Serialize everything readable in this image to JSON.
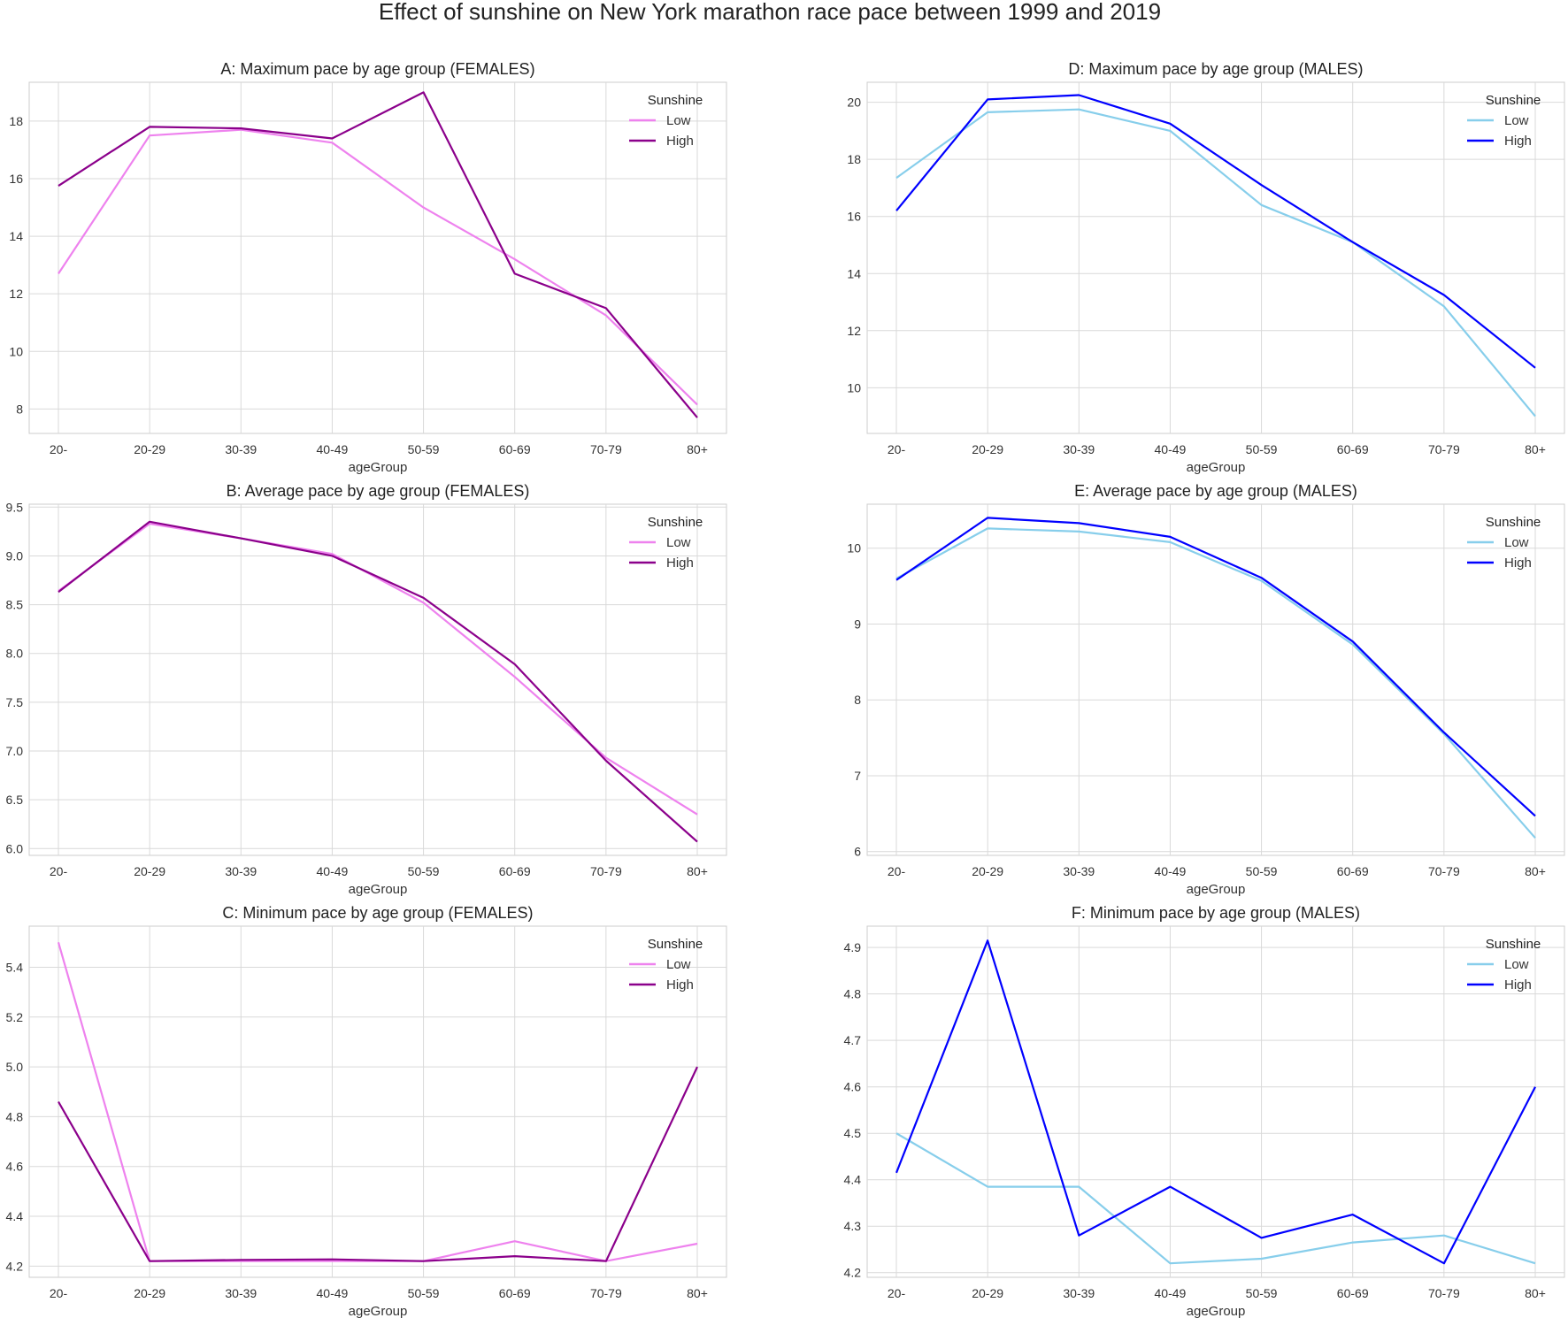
{
  "figure_title": "Effect of sunshine on New York marathon race pace between 1999 and 2019",
  "chart_data": [
    {
      "type": "line",
      "title": "A: Maximum pace by age group (FEMALES)",
      "xlabel": "ageGroup",
      "ylabel": "",
      "categories": [
        "20-",
        "20-29",
        "30-39",
        "40-49",
        "50-59",
        "60-69",
        "70-79",
        "80+"
      ],
      "ylim": [
        7.15,
        19.35
      ],
      "yticks": [
        8,
        10,
        12,
        14,
        16,
        18
      ],
      "ytick_labels": [
        "8",
        "10",
        "12",
        "14",
        "16",
        "18"
      ],
      "legend_title": "Sunshine",
      "legend_position": "top-right",
      "grid": true,
      "series": [
        {
          "name": "Low",
          "color": "#ee82ee",
          "values": [
            12.7,
            17.5,
            17.7,
            17.25,
            15.0,
            13.2,
            11.25,
            8.15
          ]
        },
        {
          "name": "High",
          "color": "#8b008b",
          "values": [
            15.75,
            17.8,
            17.75,
            17.4,
            19.0,
            12.7,
            11.5,
            7.7
          ]
        }
      ]
    },
    {
      "type": "line",
      "title": "D: Maximum pace by age group (MALES)",
      "xlabel": "ageGroup",
      "ylabel": "",
      "categories": [
        "20-",
        "20-29",
        "30-39",
        "40-49",
        "50-59",
        "60-69",
        "70-79",
        "80+"
      ],
      "ylim": [
        8.4,
        20.7
      ],
      "yticks": [
        10,
        12,
        14,
        16,
        18,
        20
      ],
      "ytick_labels": [
        "10",
        "12",
        "14",
        "16",
        "18",
        "20"
      ],
      "legend_title": "Sunshine",
      "legend_position": "top-right",
      "grid": true,
      "series": [
        {
          "name": "Low",
          "color": "#87ceeb",
          "values": [
            17.35,
            19.65,
            19.75,
            19.0,
            16.4,
            15.1,
            12.85,
            9.0
          ]
        },
        {
          "name": "High",
          "color": "#0000ff",
          "values": [
            16.2,
            20.1,
            20.25,
            19.25,
            17.1,
            15.1,
            13.25,
            10.7
          ]
        }
      ]
    },
    {
      "type": "line",
      "title": "B: Average pace by age group (FEMALES)",
      "xlabel": "ageGroup",
      "ylabel": "",
      "categories": [
        "20-",
        "20-29",
        "30-39",
        "40-49",
        "50-59",
        "60-69",
        "70-79",
        "80+"
      ],
      "ylim": [
        5.93,
        9.53
      ],
      "yticks": [
        6.0,
        6.5,
        7.0,
        7.5,
        8.0,
        8.5,
        9.0,
        9.5
      ],
      "ytick_labels": [
        "6.0",
        "6.5",
        "7.0",
        "7.5",
        "8.0",
        "8.5",
        "9.0",
        "9.5"
      ],
      "legend_title": "Sunshine",
      "legend_position": "top-right",
      "grid": true,
      "series": [
        {
          "name": "Low",
          "color": "#ee82ee",
          "values": [
            8.64,
            9.33,
            9.18,
            9.02,
            8.52,
            7.76,
            6.93,
            6.35
          ]
        },
        {
          "name": "High",
          "color": "#8b008b",
          "values": [
            8.63,
            9.35,
            9.18,
            9.0,
            8.57,
            7.89,
            6.9,
            6.07
          ]
        }
      ]
    },
    {
      "type": "line",
      "title": "E: Average pace by age group (MALES)",
      "xlabel": "ageGroup",
      "ylabel": "",
      "categories": [
        "20-",
        "20-29",
        "30-39",
        "40-49",
        "50-59",
        "60-69",
        "70-79",
        "80+"
      ],
      "ylim": [
        5.95,
        10.58
      ],
      "yticks": [
        6,
        7,
        8,
        9,
        10
      ],
      "ytick_labels": [
        "6",
        "7",
        "8",
        "9",
        "10"
      ],
      "legend_title": "Sunshine",
      "legend_position": "top-right",
      "grid": true,
      "series": [
        {
          "name": "Low",
          "color": "#87ceeb",
          "values": [
            9.6,
            10.26,
            10.22,
            10.08,
            9.57,
            8.73,
            7.55,
            6.18
          ]
        },
        {
          "name": "High",
          "color": "#0000ff",
          "values": [
            9.58,
            10.4,
            10.33,
            10.15,
            9.61,
            8.77,
            7.57,
            6.47
          ]
        }
      ]
    },
    {
      "type": "line",
      "title": "C: Minimum pace by age group (FEMALES)",
      "xlabel": "ageGroup",
      "ylabel": "",
      "categories": [
        "20-",
        "20-29",
        "30-39",
        "40-49",
        "50-59",
        "60-69",
        "70-79",
        "80+"
      ],
      "ylim": [
        4.155,
        5.565
      ],
      "yticks": [
        4.2,
        4.4,
        4.6,
        4.8,
        5.0,
        5.2,
        5.4
      ],
      "ytick_labels": [
        "4.2",
        "4.4",
        "4.6",
        "4.8",
        "5.0",
        "5.2",
        "5.4"
      ],
      "legend_title": "Sunshine",
      "legend_position": "top-right",
      "grid": true,
      "series": [
        {
          "name": "Low",
          "color": "#ee82ee",
          "values": [
            5.5,
            4.22,
            4.22,
            4.22,
            4.22,
            4.3,
            4.22,
            4.29
          ]
        },
        {
          "name": "High",
          "color": "#8b008b",
          "values": [
            4.86,
            4.22,
            4.225,
            4.227,
            4.22,
            4.24,
            4.22,
            5.0
          ]
        }
      ]
    },
    {
      "type": "line",
      "title": "F: Minimum pace by age group (MALES)",
      "xlabel": "ageGroup",
      "ylabel": "",
      "categories": [
        "20-",
        "20-29",
        "30-39",
        "40-49",
        "50-59",
        "60-69",
        "70-79",
        "80+"
      ],
      "ylim": [
        4.19,
        4.946
      ],
      "yticks": [
        4.2,
        4.3,
        4.4,
        4.5,
        4.6,
        4.7,
        4.8,
        4.9
      ],
      "ytick_labels": [
        "4.2",
        "4.3",
        "4.4",
        "4.5",
        "4.6",
        "4.7",
        "4.8",
        "4.9"
      ],
      "legend_title": "Sunshine",
      "legend_position": "top-right",
      "grid": true,
      "series": [
        {
          "name": "Low",
          "color": "#87ceeb",
          "values": [
            4.5,
            4.385,
            4.385,
            4.22,
            4.23,
            4.265,
            4.28,
            4.22
          ]
        },
        {
          "name": "High",
          "color": "#0000ff",
          "values": [
            4.415,
            4.915,
            4.28,
            4.385,
            4.275,
            4.325,
            4.22,
            4.6
          ]
        }
      ]
    }
  ]
}
